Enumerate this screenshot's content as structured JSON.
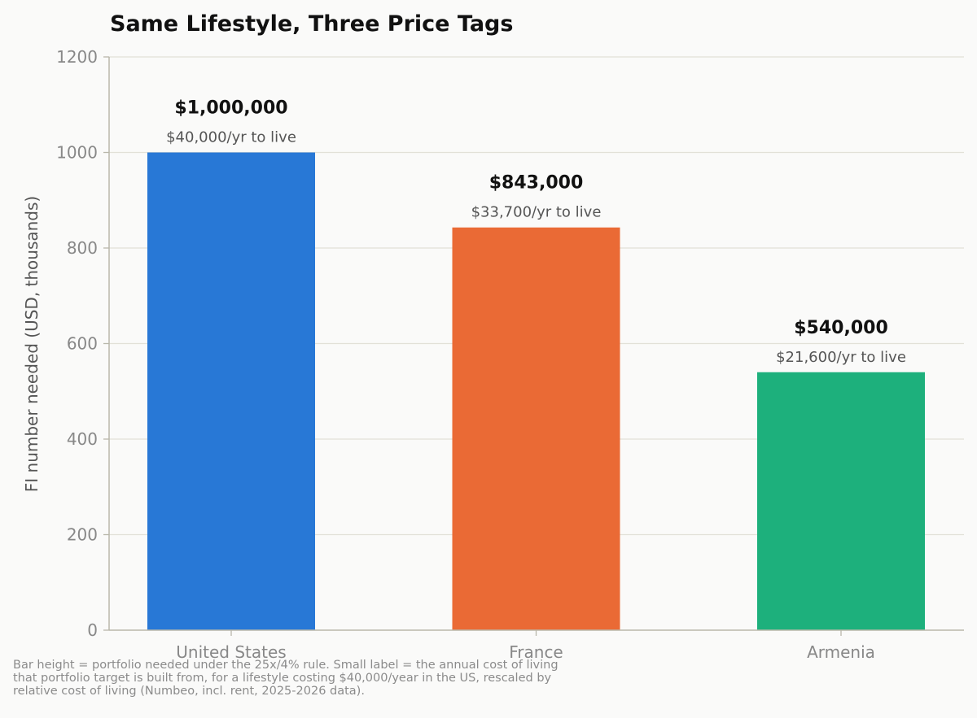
{
  "chart_data": {
    "type": "bar",
    "title": "Same Lifestyle, Three Price Tags",
    "xlabel": "",
    "ylabel": "FI number needed (USD, thousands)",
    "ylim": [
      0,
      1200
    ],
    "yticks": [
      0,
      200,
      400,
      600,
      800,
      1000,
      1200
    ],
    "grid": true,
    "categories": [
      "United States",
      "France",
      "Armenia"
    ],
    "values": [
      1000,
      843,
      540
    ],
    "colors": [
      "#2878d6",
      "#ea6a35",
      "#1db07c"
    ],
    "value_labels": [
      "$1,000,000",
      "$843,000",
      "$540,000"
    ],
    "sub_labels": [
      "$40,000/yr to live",
      "$33,700/yr to live",
      "$21,600/yr to live"
    ]
  },
  "footnote": {
    "lines": [
      "Bar height = portfolio needed under the 25x/4% rule. Small label = the annual cost of living",
      "that portfolio target is built from, for a lifestyle costing $40,000/year in the US, rescaled by",
      "relative cost of living (Numbeo, incl. rent, 2025-2026 data)."
    ]
  }
}
